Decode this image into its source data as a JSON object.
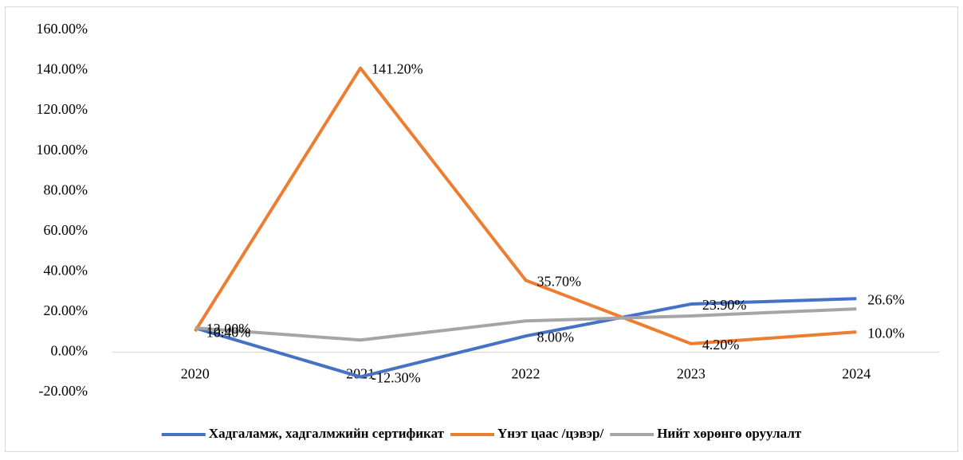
{
  "chart_data": {
    "type": "line",
    "categories": [
      "2020",
      "2021",
      "2022",
      "2023",
      "2024"
    ],
    "series": [
      {
        "name": "Хадгаламж, хадгалмжийн сертификат",
        "color": "#4472c4",
        "values": [
          12.0,
          -12.3,
          8.0,
          23.9,
          26.6
        ],
        "value_labels": [
          "12.00%",
          "-12.30%",
          "8.00%",
          "23.90%",
          "26.6%"
        ]
      },
      {
        "name": "Үнэт цаас /цэвэр/",
        "color": "#ed7d31",
        "values": [
          10.4,
          141.2,
          35.7,
          4.2,
          10.0
        ],
        "value_labels": [
          "10.40%",
          "141.20%",
          "35.70%",
          "4.20%",
          "10.0%"
        ]
      },
      {
        "name": "Нийт хөрөнгө оруулалт",
        "color": "#a5a5a5",
        "values": [
          12,
          6,
          15.5,
          18,
          21.5
        ]
      }
    ],
    "ylim": [
      -20,
      160
    ],
    "yticks": [
      {
        "value": -20,
        "label": "-20.00%"
      },
      {
        "value": 0,
        "label": "0.00%"
      },
      {
        "value": 20,
        "label": "20.00%"
      },
      {
        "value": 40,
        "label": "40.00%"
      },
      {
        "value": 60,
        "label": "60.00%"
      },
      {
        "value": 80,
        "label": "80.00%"
      },
      {
        "value": 100,
        "label": "100.00%"
      },
      {
        "value": 120,
        "label": "120.00%"
      },
      {
        "value": 140,
        "label": "140.00%"
      },
      {
        "value": 160,
        "label": "160.00%"
      }
    ],
    "grid": false,
    "legend": "bottom"
  }
}
